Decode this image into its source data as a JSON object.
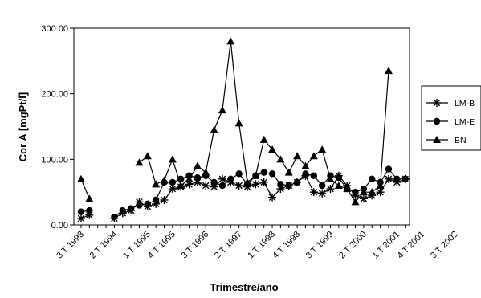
{
  "chart_data": {
    "type": "line",
    "title": "",
    "xlabel": "Trimestre/ano",
    "ylabel": "Cor A [mgPt/l]",
    "ylim": [
      0,
      300
    ],
    "yticks": [
      "0.00",
      "100.00",
      "200.00",
      "300.00"
    ],
    "xticks": [
      {
        "index": 0,
        "label": "3 T 1993"
      },
      {
        "index": 4,
        "label": "2 T 1994"
      },
      {
        "index": 8,
        "label": "1 T 1995"
      },
      {
        "index": 11,
        "label": "4 T 1995"
      },
      {
        "index": 15,
        "label": "3 T 1996"
      },
      {
        "index": 19,
        "label": "2 T 1997"
      },
      {
        "index": 23,
        "label": "1 T 1998"
      },
      {
        "index": 26,
        "label": "4 T 1998"
      },
      {
        "index": 30,
        "label": "3 T 1999"
      },
      {
        "index": 34,
        "label": "2 T 2000"
      },
      {
        "index": 38,
        "label": "1 T 2001"
      },
      {
        "index": 41,
        "label": "4 T 2001"
      },
      {
        "index": 45,
        "label": "3 T 2002"
      }
    ],
    "grid": false,
    "legend_position": "right",
    "series": [
      {
        "name": "LM-B",
        "marker": "asterisk",
        "values": [
          10,
          15,
          null,
          null,
          10,
          18,
          22,
          35,
          28,
          32,
          38,
          55,
          58,
          62,
          65,
          60,
          58,
          70,
          65,
          60,
          58,
          62,
          65,
          42,
          55,
          60,
          65,
          75,
          50,
          48,
          55,
          75,
          60,
          45,
          40,
          45,
          50,
          70,
          65,
          70
        ]
      },
      {
        "name": "LM-E",
        "marker": "circle",
        "values": [
          20,
          22,
          null,
          null,
          12,
          22,
          25,
          30,
          32,
          38,
          65,
          65,
          70,
          75,
          72,
          75,
          65,
          60,
          70,
          78,
          62,
          75,
          80,
          78,
          62,
          60,
          65,
          78,
          75,
          60,
          75,
          72,
          55,
          50,
          55,
          70,
          65,
          85,
          70,
          70
        ]
      },
      {
        "name": "BN",
        "marker": "triangle",
        "values": [
          70,
          40,
          null,
          null,
          null,
          null,
          null,
          95,
          105,
          62,
          68,
          100,
          60,
          70,
          90,
          80,
          145,
          175,
          280,
          155,
          65,
          75,
          130,
          115,
          100,
          80,
          105,
          90,
          105,
          115,
          70,
          60,
          55,
          35,
          50,
          50,
          60,
          235,
          null,
          null
        ]
      }
    ]
  }
}
